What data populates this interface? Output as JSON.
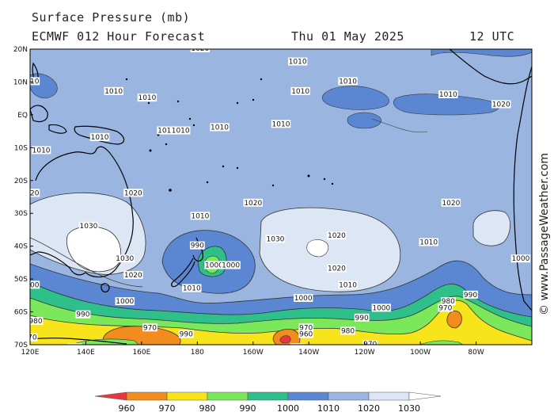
{
  "header": {
    "title": "Surface Pressure (mb)",
    "model": "ECMWF 012 Hour Forecast",
    "date": "Thu 01 May 2025",
    "time": "12 UTC"
  },
  "credit": "© www.PassageWeather.com",
  "axes": {
    "lat_labels": [
      "20N",
      "10N",
      "EQ",
      "10S",
      "20S",
      "30S",
      "40S",
      "50S",
      "60S",
      "70S"
    ],
    "lon_labels": [
      "120E",
      "140E",
      "160E",
      "180",
      "160W",
      "140W",
      "120W",
      "100W",
      "80W"
    ]
  },
  "legend": {
    "levels": [
      "960",
      "970",
      "980",
      "990",
      "1000",
      "1010",
      "1020",
      "1030"
    ],
    "colors": [
      "#e8383d",
      "#f28c1e",
      "#f7e41a",
      "#7ae85a",
      "#2fbf8a",
      "#5b86d2",
      "#9ab6e0",
      "#dde6f5",
      "#ffffff"
    ]
  },
  "isobar_labels": [
    {
      "text": "1020",
      "lon": 181,
      "lat": 20
    },
    {
      "text": "1010",
      "lon": 216,
      "lat": 16
    },
    {
      "text": "1010",
      "lon": 162,
      "lat": 5
    },
    {
      "text": "1010",
      "lon": 150,
      "lat": 7
    },
    {
      "text": "1010",
      "lon": 145,
      "lat": -7
    },
    {
      "text": "1010",
      "lon": 120,
      "lat": 10
    },
    {
      "text": "1010",
      "lon": 124,
      "lat": -11
    },
    {
      "text": "1010",
      "lon": 169,
      "lat": -5
    },
    {
      "text": "1010",
      "lon": 174,
      "lat": -5
    },
    {
      "text": "1010",
      "lon": 188,
      "lat": -4
    },
    {
      "text": "1010",
      "lon": 210,
      "lat": -3
    },
    {
      "text": "1010",
      "lon": 217,
      "lat": 7
    },
    {
      "text": "1010",
      "lon": 234,
      "lat": 10
    },
    {
      "text": "1010",
      "lon": 270,
      "lat": 6
    },
    {
      "text": "1020",
      "lon": 289,
      "lat": 3
    },
    {
      "text": "1020",
      "lon": 120,
      "lat": -24
    },
    {
      "text": "1020",
      "lon": 157,
      "lat": -24
    },
    {
      "text": "1030",
      "lon": 141,
      "lat": -34
    },
    {
      "text": "1030",
      "lon": 154,
      "lat": -44
    },
    {
      "text": "1010",
      "lon": 181,
      "lat": -31
    },
    {
      "text": "1020",
      "lon": 200,
      "lat": -27
    },
    {
      "text": "1030",
      "lon": 208,
      "lat": -38
    },
    {
      "text": "1020",
      "lon": 230,
      "lat": -37
    },
    {
      "text": "1010",
      "lon": 263,
      "lat": -39
    },
    {
      "text": "1020",
      "lon": 271,
      "lat": -27
    },
    {
      "text": "990",
      "lon": 180,
      "lat": -40
    },
    {
      "text": "1000",
      "lon": 186,
      "lat": -46
    },
    {
      "text": "1000",
      "lon": 192,
      "lat": -46
    },
    {
      "text": "1020",
      "lon": 230,
      "lat": -47
    },
    {
      "text": "1010",
      "lon": 234,
      "lat": -52
    },
    {
      "text": "1010",
      "lon": 178,
      "lat": -53
    },
    {
      "text": "1020",
      "lon": 157,
      "lat": -49
    },
    {
      "text": "1000",
      "lon": 120,
      "lat": -52
    },
    {
      "text": "1000",
      "lon": 154,
      "lat": -57
    },
    {
      "text": "1000",
      "lon": 218,
      "lat": -56
    },
    {
      "text": "1000",
      "lon": 246,
      "lat": -59
    },
    {
      "text": "990",
      "lon": 139,
      "lat": -61
    },
    {
      "text": "990",
      "lon": 239,
      "lat": -62
    },
    {
      "text": "990",
      "lon": 278,
      "lat": -55
    },
    {
      "text": "980",
      "lon": 122,
      "lat": -63
    },
    {
      "text": "980",
      "lon": 270,
      "lat": -57
    },
    {
      "text": "980",
      "lon": 234,
      "lat": -66
    },
    {
      "text": "970",
      "lon": 163,
      "lat": -65
    },
    {
      "text": "970",
      "lon": 219,
      "lat": -65
    },
    {
      "text": "970",
      "lon": 269,
      "lat": -59
    },
    {
      "text": "970",
      "lon": 120,
      "lat": -68
    },
    {
      "text": "970",
      "lon": 216,
      "lat": -71
    },
    {
      "text": "970",
      "lon": 242,
      "lat": -70
    },
    {
      "text": "960",
      "lon": 219,
      "lat": -67
    },
    {
      "text": "990",
      "lon": 176,
      "lat": -67
    },
    {
      "text": "990",
      "lon": 136,
      "lat": -71
    },
    {
      "text": "1000",
      "lon": 296,
      "lat": -44
    }
  ]
}
